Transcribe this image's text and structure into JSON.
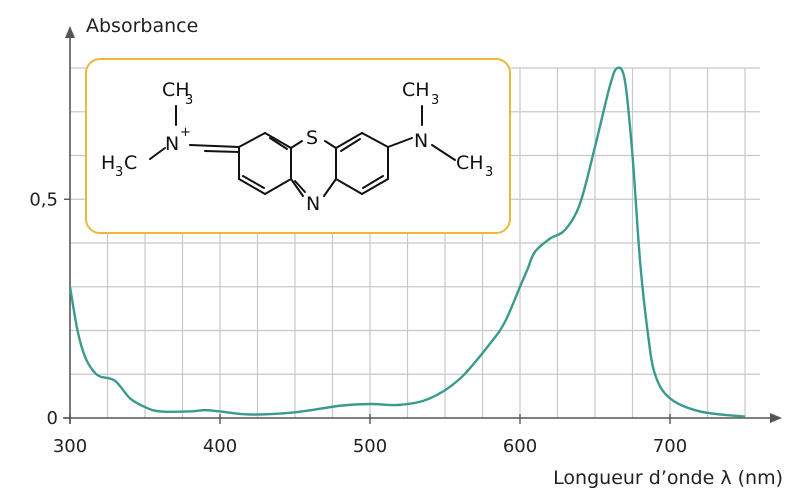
{
  "chart_data": {
    "type": "line",
    "xlabel": "Longueur d’onde λ (nm)",
    "ylabel": "Absorbance",
    "xlim": [
      300,
      750
    ],
    "ylim": [
      0,
      0.8
    ],
    "x_ticks": [
      "300",
      "400",
      "500",
      "600",
      "700"
    ],
    "y_ticks": [
      "0",
      "0,5"
    ],
    "grid": true,
    "series": [
      {
        "color": "#3a9a8e",
        "x": [
          300,
          305,
          310,
          315,
          320,
          330,
          340,
          350,
          360,
          380,
          390,
          400,
          420,
          450,
          480,
          500,
          520,
          540,
          560,
          580,
          590,
          600,
          605,
          610,
          620,
          630,
          640,
          650,
          660,
          665,
          670,
          675,
          680,
          685,
          690,
          700,
          720,
          750
        ],
        "y": [
          0.3,
          0.2,
          0.14,
          0.11,
          0.095,
          0.085,
          0.045,
          0.025,
          0.015,
          0.015,
          0.018,
          0.015,
          0.008,
          0.013,
          0.028,
          0.032,
          0.03,
          0.045,
          0.09,
          0.17,
          0.22,
          0.3,
          0.34,
          0.38,
          0.41,
          0.43,
          0.49,
          0.62,
          0.76,
          0.8,
          0.77,
          0.6,
          0.36,
          0.2,
          0.1,
          0.045,
          0.015,
          0.003
        ]
      }
    ]
  },
  "molecule": {
    "atoms": {
      "ch3_top_left": "CH",
      "ch3_top_right": "CH",
      "ch3_left": "CH",
      "ch3_right": "CH",
      "subscript_3": "3",
      "n_plus": "N",
      "plus": "+",
      "n_right": "N",
      "s": "S",
      "n_bottom": "N",
      "h3c_h": "H",
      "h3c_c": "C"
    },
    "box_color": "#e8b93a"
  }
}
